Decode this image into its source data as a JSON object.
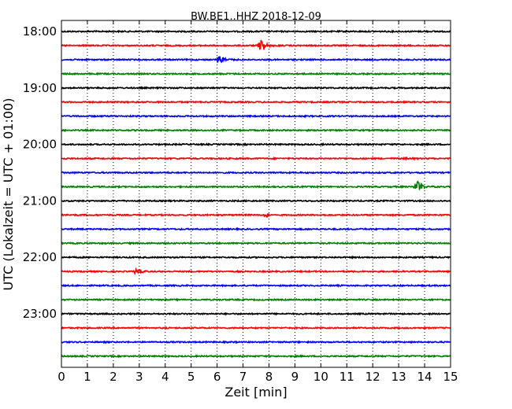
{
  "chart_data": {
    "type": "line",
    "title": "BW.BE1..HHZ 2018-12-09",
    "xlabel": "Zeit  [min]",
    "ylabel": "UTC (Lokalzeit = UTC + 01:00)",
    "xlim": [
      0,
      15
    ],
    "x_ticks": [
      0,
      1,
      2,
      3,
      4,
      5,
      6,
      7,
      8,
      9,
      10,
      11,
      12,
      13,
      14,
      15
    ],
    "x_grid": "dotted",
    "y_tick_labels": [
      "18:00",
      "19:00",
      "20:00",
      "21:00",
      "22:00",
      "23:00"
    ],
    "trace_colors": [
      "#000000",
      "#ff0000",
      "#0000ff",
      "#008000"
    ],
    "traces": [
      {
        "start": "18:00",
        "color": "#000000",
        "events": []
      },
      {
        "start": "18:15",
        "color": "#ff0000",
        "events": [
          {
            "t": 7.7,
            "amp": 1.0
          }
        ]
      },
      {
        "start": "18:30",
        "color": "#0000ff",
        "events": [
          {
            "t": 6.1,
            "amp": 0.6
          }
        ]
      },
      {
        "start": "18:45",
        "color": "#008000",
        "events": []
      },
      {
        "start": "19:00",
        "color": "#000000",
        "events": []
      },
      {
        "start": "19:15",
        "color": "#ff0000",
        "events": []
      },
      {
        "start": "19:30",
        "color": "#0000ff",
        "events": []
      },
      {
        "start": "19:45",
        "color": "#008000",
        "events": []
      },
      {
        "start": "20:00",
        "color": "#000000",
        "events": []
      },
      {
        "start": "20:15",
        "color": "#ff0000",
        "events": [
          {
            "t": 13.3,
            "amp": 0.2
          }
        ]
      },
      {
        "start": "20:30",
        "color": "#0000ff",
        "events": []
      },
      {
        "start": "20:45",
        "color": "#008000",
        "events": [
          {
            "t": 13.7,
            "amp": 1.0
          }
        ]
      },
      {
        "start": "21:00",
        "color": "#000000",
        "events": []
      },
      {
        "start": "21:15",
        "color": "#ff0000",
        "events": [
          {
            "t": 7.9,
            "amp": 0.35
          }
        ]
      },
      {
        "start": "21:30",
        "color": "#0000ff",
        "events": []
      },
      {
        "start": "21:45",
        "color": "#008000",
        "events": []
      },
      {
        "start": "22:00",
        "color": "#000000",
        "events": []
      },
      {
        "start": "22:15",
        "color": "#ff0000",
        "events": [
          {
            "t": 2.9,
            "amp": 0.4
          }
        ]
      },
      {
        "start": "22:30",
        "color": "#0000ff",
        "events": []
      },
      {
        "start": "22:45",
        "color": "#008000",
        "events": []
      },
      {
        "start": "23:00",
        "color": "#000000",
        "events": []
      },
      {
        "start": "23:15",
        "color": "#ff0000",
        "events": []
      },
      {
        "start": "23:30",
        "color": "#0000ff",
        "events": []
      },
      {
        "start": "23:45",
        "color": "#008000",
        "events": []
      }
    ]
  }
}
